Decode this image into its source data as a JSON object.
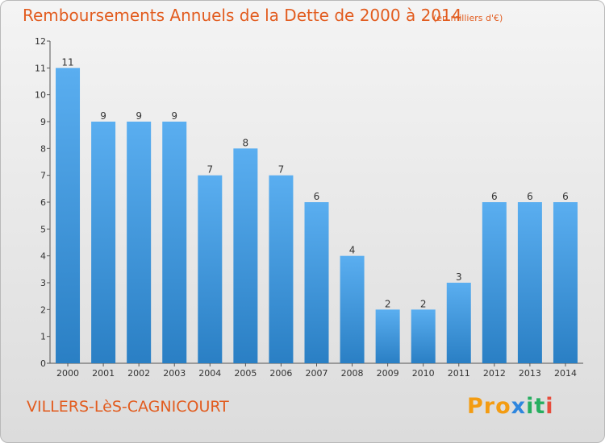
{
  "title": "Remboursements Annuels de la Dette de 2000 à 2014",
  "unit_note": "(en milliers d'€)",
  "commune": "VILLERS-LèS-CAGNICOURT",
  "logo": {
    "p1": "Pro",
    "p2": "x",
    "p3": "it",
    "p4": "i"
  },
  "colors": {
    "bar_top": "#5aaef0",
    "bar_bottom": "#2a7fc4",
    "title": "#e25c1f"
  },
  "chart_data": {
    "type": "bar",
    "title": "Remboursements Annuels de la Dette de 2000 à 2014",
    "categories": [
      "2000",
      "2001",
      "2002",
      "2003",
      "2004",
      "2005",
      "2006",
      "2007",
      "2008",
      "2009",
      "2010",
      "2011",
      "2012",
      "2013",
      "2014"
    ],
    "values": [
      11,
      9,
      9,
      9,
      7,
      8,
      7,
      6,
      4,
      2,
      2,
      3,
      6,
      6,
      6
    ],
    "data_labels": [
      "11",
      "9",
      "9",
      "9",
      "7",
      "8",
      "7",
      "6",
      "4",
      "2",
      "2",
      "3",
      "6",
      "6",
      "6"
    ],
    "yticks": [
      "0",
      "1",
      "2",
      "3",
      "4",
      "5",
      "6",
      "7",
      "8",
      "9",
      "10",
      "11",
      "12"
    ],
    "ylim": [
      0,
      12
    ],
    "grid": false
  }
}
